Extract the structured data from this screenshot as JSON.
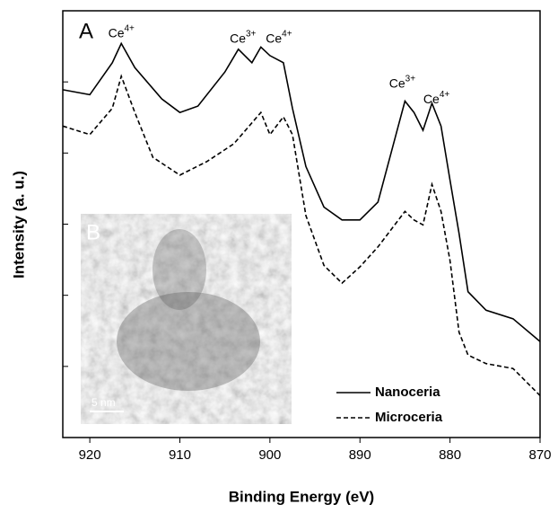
{
  "chart_data": {
    "type": "line",
    "xlabel": "Binding Energy (eV)",
    "ylabel": "Intensity (a. u.)",
    "xlim": [
      923,
      870
    ],
    "xticks": [
      920,
      910,
      900,
      890,
      880,
      870
    ],
    "ylim": [
      0,
      6
    ],
    "yticks": [
      1,
      2,
      3,
      4,
      5
    ],
    "panel_label": "A",
    "inset": {
      "label": "B",
      "scale_bar": "5 nm"
    },
    "legend": "lower right",
    "annotations": [
      {
        "text": "Ce",
        "sup": "4+",
        "x": 916.5,
        "y": 5.68
      },
      {
        "text": "Ce",
        "sup": "3+",
        "x": 903,
        "y": 5.6
      },
      {
        "text": "Ce",
        "sup": "4+",
        "x": 899,
        "y": 5.6
      },
      {
        "text": "Ce",
        "sup": "3+",
        "x": 885.3,
        "y": 4.97
      },
      {
        "text": "Ce",
        "sup": "4+",
        "x": 881.5,
        "y": 4.75
      }
    ],
    "series": [
      {
        "name": "Nanoceria",
        "color": "#000000",
        "linestyle": "solid",
        "x": [
          923,
          920,
          917.5,
          916.5,
          915,
          912,
          910,
          908,
          905,
          903.5,
          902,
          901,
          900,
          898.5,
          897.5,
          896,
          894,
          892,
          890,
          888,
          886,
          885,
          884,
          883,
          882,
          881,
          880,
          879,
          878,
          876,
          873,
          870
        ],
        "values": [
          4.89,
          4.82,
          5.27,
          5.54,
          5.2,
          4.76,
          4.57,
          4.66,
          5.14,
          5.46,
          5.27,
          5.49,
          5.37,
          5.27,
          4.63,
          3.81,
          3.24,
          3.06,
          3.06,
          3.31,
          4.26,
          4.73,
          4.57,
          4.32,
          4.7,
          4.38,
          3.62,
          2.87,
          2.05,
          1.79,
          1.67,
          1.35
        ]
      },
      {
        "name": "Microceria",
        "color": "#000000",
        "linestyle": "dashed",
        "x": [
          923,
          920,
          917.5,
          916.5,
          915,
          913,
          910,
          907,
          904,
          901,
          900,
          898.5,
          897.5,
          896,
          894,
          892,
          890,
          888,
          885,
          884,
          883,
          882,
          881,
          880,
          879,
          878,
          876,
          873,
          870
        ],
        "values": [
          4.38,
          4.26,
          4.63,
          5.08,
          4.57,
          3.94,
          3.69,
          3.88,
          4.13,
          4.57,
          4.26,
          4.51,
          4.26,
          3.12,
          2.42,
          2.17,
          2.4,
          2.68,
          3.18,
          3.06,
          2.99,
          3.56,
          3.18,
          2.49,
          1.48,
          1.16,
          1.04,
          0.97,
          0.59
        ]
      }
    ]
  }
}
